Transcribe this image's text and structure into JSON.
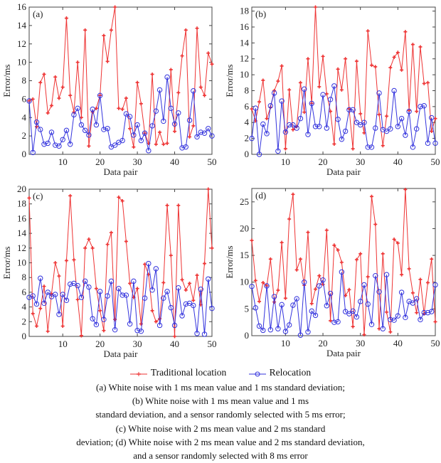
{
  "chart_data": [
    {
      "type": "line",
      "panel_label": "(a)",
      "xlabel": "Data pair",
      "ylabel": "Error/ms",
      "xlim": [
        1,
        50
      ],
      "ylim": [
        0,
        16
      ],
      "xticks": [
        10,
        20,
        30,
        40,
        50
      ],
      "yticks": [
        0,
        2,
        4,
        6,
        8,
        10,
        12,
        14,
        16
      ],
      "series": [
        {
          "name": "Traditional location",
          "color": "#ee3333",
          "marker": "plus",
          "values": [
            5.8,
            6.0,
            3.0,
            7.8,
            8.7,
            4.5,
            5.3,
            8.4,
            6.1,
            7.3,
            14.8,
            6.4,
            4.6,
            10.0,
            4.0,
            13.5,
            0.9,
            4.6,
            5.0,
            6.4,
            12.9,
            10.1,
            13.5,
            16.0,
            5.0,
            4.9,
            6.1,
            2.8,
            0.8,
            7.8,
            5.5,
            2.3,
            1.2,
            8.7,
            1.1,
            2.4,
            1.1,
            1.2,
            9.2,
            2.5,
            6.7,
            10.7,
            13.5,
            1.9,
            3.1,
            13.7,
            7.3,
            6.4,
            11.0,
            9.8
          ]
        },
        {
          "name": "Relocation",
          "color": "#3333dd",
          "marker": "circle",
          "values": [
            5.8,
            0.2,
            3.5,
            2.7,
            1.1,
            1.2,
            2.4,
            1.0,
            0.9,
            1.6,
            2.6,
            1.1,
            4.3,
            5.0,
            3.2,
            2.6,
            2.1,
            4.9,
            3.2,
            6.4,
            2.7,
            2.8,
            0.8,
            1.0,
            1.3,
            1.5,
            4.4,
            4.1,
            2.1,
            3.2,
            1.5,
            2.3,
            0.4,
            3.1,
            4.7,
            7.0,
            3.6,
            8.4,
            5.0,
            3.3,
            4.5,
            0.7,
            0.8,
            3.7,
            6.9,
            1.9,
            2.4,
            2.3,
            2.8,
            2.0
          ]
        }
      ]
    },
    {
      "type": "line",
      "panel_label": "(b)",
      "xlabel": "Data pair",
      "ylabel": "Error/ms",
      "xlim": [
        1,
        50
      ],
      "ylim": [
        0,
        18.5
      ],
      "xticks": [
        10,
        20,
        30,
        40,
        50
      ],
      "yticks": [
        0,
        2,
        4,
        6,
        8,
        10,
        12,
        14,
        16,
        18
      ],
      "series": [
        {
          "name": "Traditional location",
          "color": "#ee3333",
          "marker": "plus",
          "values": [
            5.7,
            4.2,
            6.6,
            9.3,
            4.5,
            5.9,
            8.0,
            9.2,
            11.1,
            0.7,
            8.1,
            3.1,
            3.5,
            9.0,
            5.3,
            12.0,
            6.4,
            18.5,
            8.5,
            12.3,
            7.6,
            5.4,
            1.3,
            10.7,
            8.1,
            12.0,
            5.7,
            0.7,
            11.7,
            5.1,
            2.7,
            15.5,
            11.2,
            11.0,
            5.0,
            1.1,
            4.8,
            10.9,
            12.2,
            12.8,
            10.6,
            15.4,
            5.5,
            13.8,
            5.4,
            13.5,
            8.9,
            9.0,
            2.9,
            4.5
          ]
        },
        {
          "name": "Relocation",
          "color": "#3333dd",
          "marker": "circle",
          "values": [
            2.0,
            5.8,
            0.0,
            3.8,
            2.6,
            6.1,
            7.7,
            0.4,
            6.7,
            2.8,
            3.7,
            3.7,
            3.3,
            4.5,
            8.2,
            2.5,
            6.4,
            3.5,
            3.5,
            7.5,
            3.3,
            6.9,
            8.6,
            4.4,
            1.9,
            2.9,
            5.6,
            5.6,
            4.0,
            3.7,
            4.0,
            0.9,
            0.9,
            3.3,
            7.7,
            3.1,
            2.9,
            3.2,
            8.0,
            3.5,
            4.5,
            2.4,
            5.4,
            0.9,
            3.2,
            6.0,
            6.1,
            1.4,
            4.6,
            1.4
          ]
        }
      ]
    },
    {
      "type": "line",
      "panel_label": "(c)",
      "xlabel": "Data pair",
      "ylabel": "Error/ms",
      "xlim": [
        1,
        50
      ],
      "ylim": [
        0,
        20
      ],
      "xticks": [
        10,
        20,
        30,
        40,
        50
      ],
      "yticks": [
        0,
        2,
        4,
        6,
        8,
        10,
        12,
        14,
        16,
        18,
        20
      ],
      "series": [
        {
          "name": "Traditional location",
          "color": "#ee3333",
          "marker": "plus",
          "values": [
            18.8,
            3.1,
            1.4,
            3.8,
            6.8,
            0.7,
            5.8,
            10.0,
            8.2,
            1.4,
            10.3,
            19.1,
            10.4,
            5.0,
            0.1,
            12.0,
            13.2,
            12.0,
            6.5,
            3.5,
            0.8,
            12.5,
            14.1,
            2.3,
            18.9,
            18.4,
            12.9,
            7.2,
            5.3,
            6.5,
            1.7,
            9.8,
            8.4,
            3.5,
            2.0,
            2.4,
            7.3,
            17.8,
            11.0,
            0.0,
            17.8,
            7.7,
            6.3,
            7.2,
            4.9,
            8.3,
            4.3,
            9.9,
            20.0,
            12.0
          ]
        },
        {
          "name": "Relocation",
          "color": "#3333dd",
          "marker": "circle",
          "values": [
            5.3,
            5.5,
            4.4,
            7.9,
            4.5,
            6.0,
            5.4,
            5.7,
            3.0,
            5.7,
            4.9,
            7.1,
            7.2,
            6.9,
            5.3,
            7.5,
            6.7,
            2.4,
            1.6,
            6.1,
            2.3,
            5.5,
            7.5,
            0.9,
            6.5,
            5.6,
            5.6,
            1.7,
            7.5,
            0.8,
            0.7,
            5.2,
            9.9,
            6.3,
            9.2,
            1.5,
            5.2,
            6.1,
            3.9,
            1.5,
            6.6,
            2.8,
            4.4,
            4.5,
            4.2,
            0.4,
            6.4,
            0.3,
            7.8,
            3.8
          ]
        }
      ]
    },
    {
      "type": "line",
      "panel_label": "(d)",
      "xlabel": "Data pair",
      "ylabel": "Error/ms",
      "xlim": [
        1,
        50
      ],
      "ylim": [
        0,
        27.5
      ],
      "xticks": [
        10,
        20,
        30,
        40,
        50
      ],
      "yticks": [
        0,
        5,
        10,
        15,
        20,
        25
      ],
      "series": [
        {
          "name": "Traditional location",
          "color": "#ee3333",
          "marker": "plus",
          "values": [
            17.8,
            10.3,
            6.4,
            9.9,
            9.3,
            14.3,
            6.3,
            8.5,
            17.4,
            7.0,
            21.8,
            26.4,
            12.3,
            14.3,
            9.4,
            19.3,
            6.0,
            8.7,
            11.2,
            9.6,
            19.7,
            2.8,
            16.9,
            16.0,
            13.7,
            7.5,
            8.6,
            1.7,
            14.2,
            15.3,
            0.2,
            11.0,
            26.0,
            20.8,
            1.3,
            15.3,
            4.4,
            0.7,
            18.0,
            17.3,
            11.4,
            27.3,
            12.5,
            8.0,
            4.3,
            10.5,
            4.1,
            9.9,
            14.3,
            2.6
          ]
        },
        {
          "name": "Relocation",
          "color": "#3333dd",
          "marker": "circle",
          "values": [
            9.2,
            5.2,
            1.8,
            1.0,
            9.3,
            1.1,
            7.3,
            1.3,
            5.8,
            0.8,
            2.0,
            5.7,
            6.9,
            0.1,
            10.0,
            0.7,
            4.6,
            3.8,
            9.3,
            10.4,
            5.6,
            7.9,
            2.5,
            2.6,
            11.9,
            4.5,
            4.1,
            4.6,
            3.5,
            6.4,
            9.5,
            5.9,
            2.1,
            11.2,
            8.2,
            1.3,
            11.4,
            3.0,
            2.9,
            3.7,
            8.1,
            3.4,
            6.4,
            6.1,
            6.9,
            3.0,
            4.3,
            4.3,
            4.5,
            9.5
          ]
        }
      ]
    }
  ],
  "legend": {
    "placement": "bottom-center",
    "items": [
      {
        "label": "Traditional location",
        "color": "#ee3333",
        "marker": "plus"
      },
      {
        "label": "Relocation",
        "color": "#3333dd",
        "marker": "circle"
      }
    ]
  },
  "caption": [
    "(a) White noise with 1 ms mean value and 1 ms standard deviation;",
    "(b) White noise with 1 ms mean value and 1 ms",
    "standard deviation, and a sensor randomly selected with 5 ms error;",
    "(c) White noise with 2 ms mean value and 2 ms standard",
    "deviation; (d) White noise with 2 ms mean value and 2 ms standard deviation,",
    "and a sensor randomly selected with 8 ms error"
  ]
}
